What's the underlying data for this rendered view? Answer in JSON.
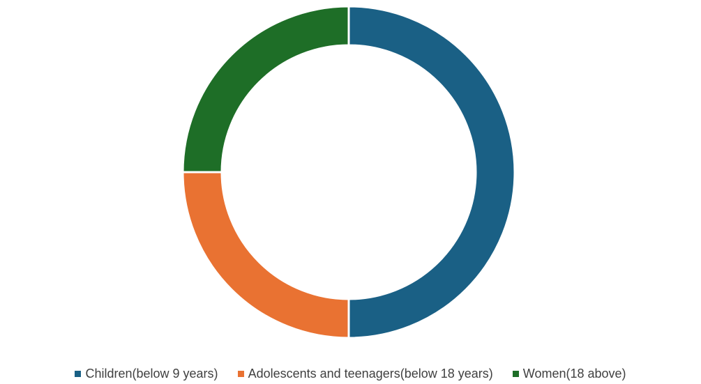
{
  "chart_data": {
    "type": "pie",
    "variant": "doughnut",
    "categories": [
      "Children(below 9 years)",
      "Adolescents and teenagers(below 18 years)",
      "Women(18 above)"
    ],
    "values": [
      50,
      25,
      25
    ],
    "colors": [
      "#1a6085",
      "#e97232",
      "#1e6e27"
    ],
    "legend_position": "bottom",
    "title": ""
  },
  "legend": {
    "items": [
      {
        "label": "Children(below 9 years)",
        "color": "#1a6085"
      },
      {
        "label": "Adolescents and teenagers(below 18 years)",
        "color": "#e97232"
      },
      {
        "label": "Women(18 above)",
        "color": "#1e6e27"
      }
    ]
  }
}
